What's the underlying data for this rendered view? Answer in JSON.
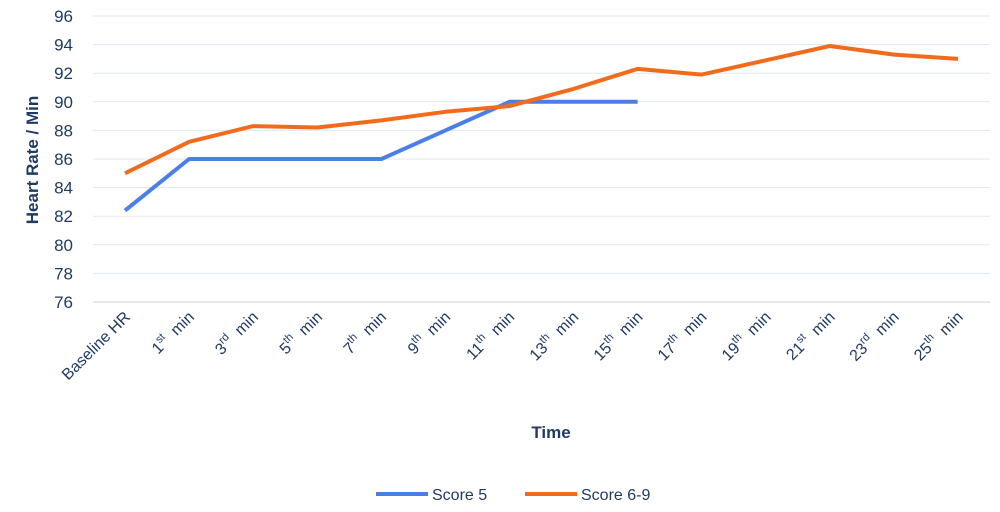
{
  "chart_data": {
    "type": "line",
    "xlabel": "Time",
    "ylabel": "Heart Rate / Min",
    "ylim": [
      76,
      96
    ],
    "ytick_step": 2,
    "grid": true,
    "legend_position": "bottom",
    "categories": [
      {
        "base": "Baseline HR",
        "sup": "",
        "tail": ""
      },
      {
        "base": "1",
        "sup": "st",
        "tail": " min"
      },
      {
        "base": "3",
        "sup": "rd",
        "tail": " min"
      },
      {
        "base": "5",
        "sup": "th",
        "tail": " min"
      },
      {
        "base": "7",
        "sup": "th",
        "tail": " min"
      },
      {
        "base": "9",
        "sup": "th",
        "tail": " min"
      },
      {
        "base": "11",
        "sup": "th",
        "tail": " min"
      },
      {
        "base": "13",
        "sup": "th",
        "tail": " min"
      },
      {
        "base": "15",
        "sup": "th",
        "tail": " min"
      },
      {
        "base": "17",
        "sup": "th",
        "tail": " min"
      },
      {
        "base": "19",
        "sup": "th",
        "tail": " min"
      },
      {
        "base": "21",
        "sup": "st",
        "tail": " min"
      },
      {
        "base": "23",
        "sup": "rd",
        "tail": " min"
      },
      {
        "base": "25",
        "sup": "th",
        "tail": " min"
      }
    ],
    "series": [
      {
        "name": "Score 5",
        "color": "#4a7ee8",
        "values": [
          82.4,
          86,
          86,
          86,
          86,
          88,
          90,
          90,
          90,
          null,
          null,
          null,
          null,
          null
        ]
      },
      {
        "name": "Score 6-9",
        "color": "#f26b1d",
        "values": [
          85,
          87.2,
          88.3,
          88.2,
          88.7,
          89.3,
          89.7,
          90.9,
          92.3,
          91.9,
          92.9,
          93.9,
          93.3,
          93
        ]
      }
    ]
  }
}
